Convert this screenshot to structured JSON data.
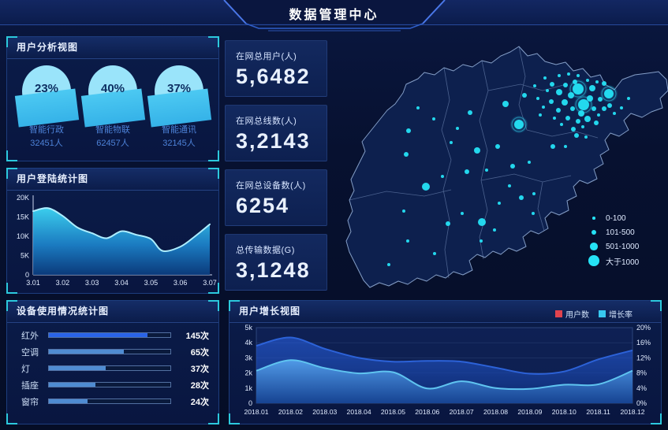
{
  "header": {
    "title": "数据管理中心"
  },
  "panels": {
    "user_analysis": {
      "title": "用户分析视图",
      "gauges": [
        {
          "percent": "23%",
          "label": "智能行政",
          "count": "32451人"
        },
        {
          "percent": "40%",
          "label": "智能物联",
          "count": "62457人"
        },
        {
          "percent": "37%",
          "label": "智能通讯",
          "count": "32145人"
        }
      ]
    },
    "login_stats": {
      "title": "用户登陆统计图"
    },
    "device_usage": {
      "title": "设备使用情况统计图",
      "rows": [
        {
          "label": "红外",
          "value": "145次",
          "percent": 81,
          "color": "#2a63e8"
        },
        {
          "label": "空调",
          "value": "65次",
          "percent": 62,
          "color": "#4f8cd2"
        },
        {
          "label": "灯",
          "value": "37次",
          "percent": 47,
          "color": "#4f8cd2"
        },
        {
          "label": "插座",
          "value": "28次",
          "percent": 38,
          "color": "#4f8cd2"
        },
        {
          "label": "窗帘",
          "value": "24次",
          "percent": 32,
          "color": "#4f8cd2"
        }
      ]
    },
    "growth": {
      "title": "用户增长视图",
      "legend": [
        {
          "label": "用户数",
          "color": "#e0434e"
        },
        {
          "label": "增长率",
          "color": "#38c8f0"
        }
      ]
    }
  },
  "stats": [
    {
      "label": "在网总用户(人)",
      "value": "5,6482"
    },
    {
      "label": "在网总线数(人)",
      "value": "3,2143"
    },
    {
      "label": "在网总设备数(人)",
      "value": "6254"
    },
    {
      "label": "总传输数据(G)",
      "value": "3,1248"
    }
  ],
  "map": {
    "bubble_color": "#25e2f5",
    "legend": [
      {
        "label": "0-100",
        "r": 1.8
      },
      {
        "label": "101-500",
        "r": 3.2
      },
      {
        "label": "501-1000",
        "r": 4.8
      },
      {
        "label": "大于1000",
        "r": 6.8
      }
    ],
    "bubbles": [
      [
        313,
        68,
        7,
        1
      ],
      [
        320,
        88,
        7,
        1
      ],
      [
        352,
        74,
        6,
        1
      ],
      [
        238,
        113,
        6,
        1
      ],
      [
        280,
        62,
        3
      ],
      [
        289,
        72,
        4
      ],
      [
        297,
        63,
        3
      ],
      [
        304,
        76,
        4
      ],
      [
        309,
        59,
        3
      ],
      [
        296,
        85,
        4
      ],
      [
        306,
        93,
        3
      ],
      [
        288,
        95,
        3
      ],
      [
        279,
        84,
        3
      ],
      [
        317,
        99,
        4
      ],
      [
        328,
        80,
        4
      ],
      [
        333,
        93,
        3
      ],
      [
        325,
        106,
        4
      ],
      [
        336,
        111,
        3
      ],
      [
        313,
        109,
        3
      ],
      [
        300,
        105,
        3
      ],
      [
        292,
        113,
        2
      ],
      [
        307,
        119,
        3
      ],
      [
        319,
        116,
        2
      ],
      [
        331,
        67,
        4
      ],
      [
        341,
        81,
        3
      ],
      [
        346,
        93,
        3
      ],
      [
        339,
        101,
        2
      ],
      [
        274,
        70,
        2
      ],
      [
        269,
        91,
        2
      ],
      [
        283,
        105,
        2
      ],
      [
        262,
        80,
        2
      ],
      [
        258,
        64,
        2
      ],
      [
        271,
        54,
        2
      ],
      [
        289,
        51,
        2
      ],
      [
        301,
        49,
        2
      ],
      [
        313,
        51,
        2
      ],
      [
        325,
        57,
        2
      ],
      [
        337,
        59,
        2
      ],
      [
        353,
        89,
        3
      ],
      [
        359,
        99,
        2
      ],
      [
        346,
        61,
        3
      ],
      [
        265,
        101,
        2
      ],
      [
        311,
        127,
        3
      ],
      [
        323,
        129,
        2
      ],
      [
        368,
        92,
        2
      ],
      [
        377,
        80,
        2
      ],
      [
        245,
        76,
        3
      ],
      [
        221,
        87,
        4
      ],
      [
        176,
        98,
        3
      ],
      [
        110,
        92,
        2
      ],
      [
        160,
        118,
        2
      ],
      [
        130,
        106,
        2
      ],
      [
        98,
        121,
        3
      ],
      [
        95,
        151,
        3
      ],
      [
        152,
        136,
        2
      ],
      [
        185,
        146,
        4
      ],
      [
        211,
        141,
        3
      ],
      [
        172,
        173,
        3
      ],
      [
        197,
        171,
        2
      ],
      [
        230,
        166,
        3
      ],
      [
        251,
        161,
        2
      ],
      [
        281,
        141,
        3
      ],
      [
        297,
        141,
        2
      ],
      [
        120,
        192,
        5
      ],
      [
        141,
        179,
        2
      ],
      [
        92,
        223,
        2
      ],
      [
        131,
        277,
        2
      ],
      [
        97,
        261,
        2
      ],
      [
        73,
        291,
        2
      ],
      [
        148,
        239,
        3
      ],
      [
        191,
        237,
        5
      ],
      [
        190,
        261,
        2
      ],
      [
        213,
        213,
        2
      ],
      [
        241,
        206,
        3
      ],
      [
        257,
        201,
        2
      ],
      [
        226,
        191,
        2
      ],
      [
        256,
        226,
        2
      ],
      [
        166,
        226,
        2
      ],
      [
        207,
        247,
        2
      ]
    ]
  },
  "chart_data": [
    {
      "id": "login_trend",
      "type": "area",
      "title": "用户登陆统计图",
      "x_tick_labels": [
        "3.01",
        "3.02",
        "3.03",
        "3.04",
        "3.05",
        "3.06",
        "3.07"
      ],
      "y_tick_labels": [
        "0",
        "5K",
        "10K",
        "15K",
        "20K"
      ],
      "ylim": [
        0,
        20
      ],
      "y_unit": "K",
      "x": [
        0,
        0.5,
        1,
        1.5,
        2,
        2.5,
        3,
        3.5,
        4,
        4.4,
        5,
        5.5,
        6
      ],
      "values": [
        16.5,
        17.3,
        15.3,
        12.3,
        10.8,
        9.5,
        11.3,
        10.4,
        9.3,
        6.2,
        7.3,
        10.0,
        13.1
      ]
    },
    {
      "id": "user_growth",
      "type": "area",
      "title": "用户增长视图",
      "categories": [
        "2018.01",
        "2018.02",
        "2018.03",
        "2018.04",
        "2018.05",
        "2018.06",
        "2018.07",
        "2018.08",
        "2018.09",
        "2018.10",
        "2018.11",
        "2018.12"
      ],
      "left_tick_labels": [
        "0",
        "1k",
        "2k",
        "3k",
        "4k",
        "5k"
      ],
      "right_tick_labels": [
        "0%",
        "4%",
        "8%",
        "12%",
        "16%",
        "20%"
      ],
      "left_ylim_k": [
        0,
        5
      ],
      "right_ylim_pct": [
        0,
        20
      ],
      "legend_position": "top-right",
      "series": [
        {
          "name": "用户数",
          "axis": "left",
          "unit": "k",
          "line_color": "#2c62d8",
          "values": [
            3.8,
            4.35,
            3.6,
            3.0,
            2.75,
            2.8,
            2.75,
            2.35,
            1.95,
            2.1,
            2.9,
            3.5
          ]
        },
        {
          "name": "增长率",
          "axis": "right",
          "unit": "%",
          "line_color": "#5fc4f0",
          "values": [
            8.6,
            11.4,
            9.3,
            7.9,
            8.2,
            3.9,
            5.8,
            4.0,
            3.8,
            4.9,
            5.0,
            8.6
          ]
        }
      ]
    },
    {
      "id": "device_usage",
      "type": "bar",
      "title": "设备使用情况统计图",
      "categories": [
        "红外",
        "空调",
        "灯",
        "插座",
        "窗帘"
      ],
      "values": [
        145,
        65,
        37,
        28,
        24
      ],
      "unit": "次",
      "fill_percents": [
        81,
        62,
        47,
        38,
        32
      ]
    },
    {
      "id": "user_analysis_gauges",
      "type": "gauge",
      "labels": [
        "智能行政",
        "智能物联",
        "智能通讯"
      ],
      "values_pct": [
        23,
        40,
        37
      ],
      "counts": [
        32451,
        62457,
        32145
      ]
    }
  ]
}
